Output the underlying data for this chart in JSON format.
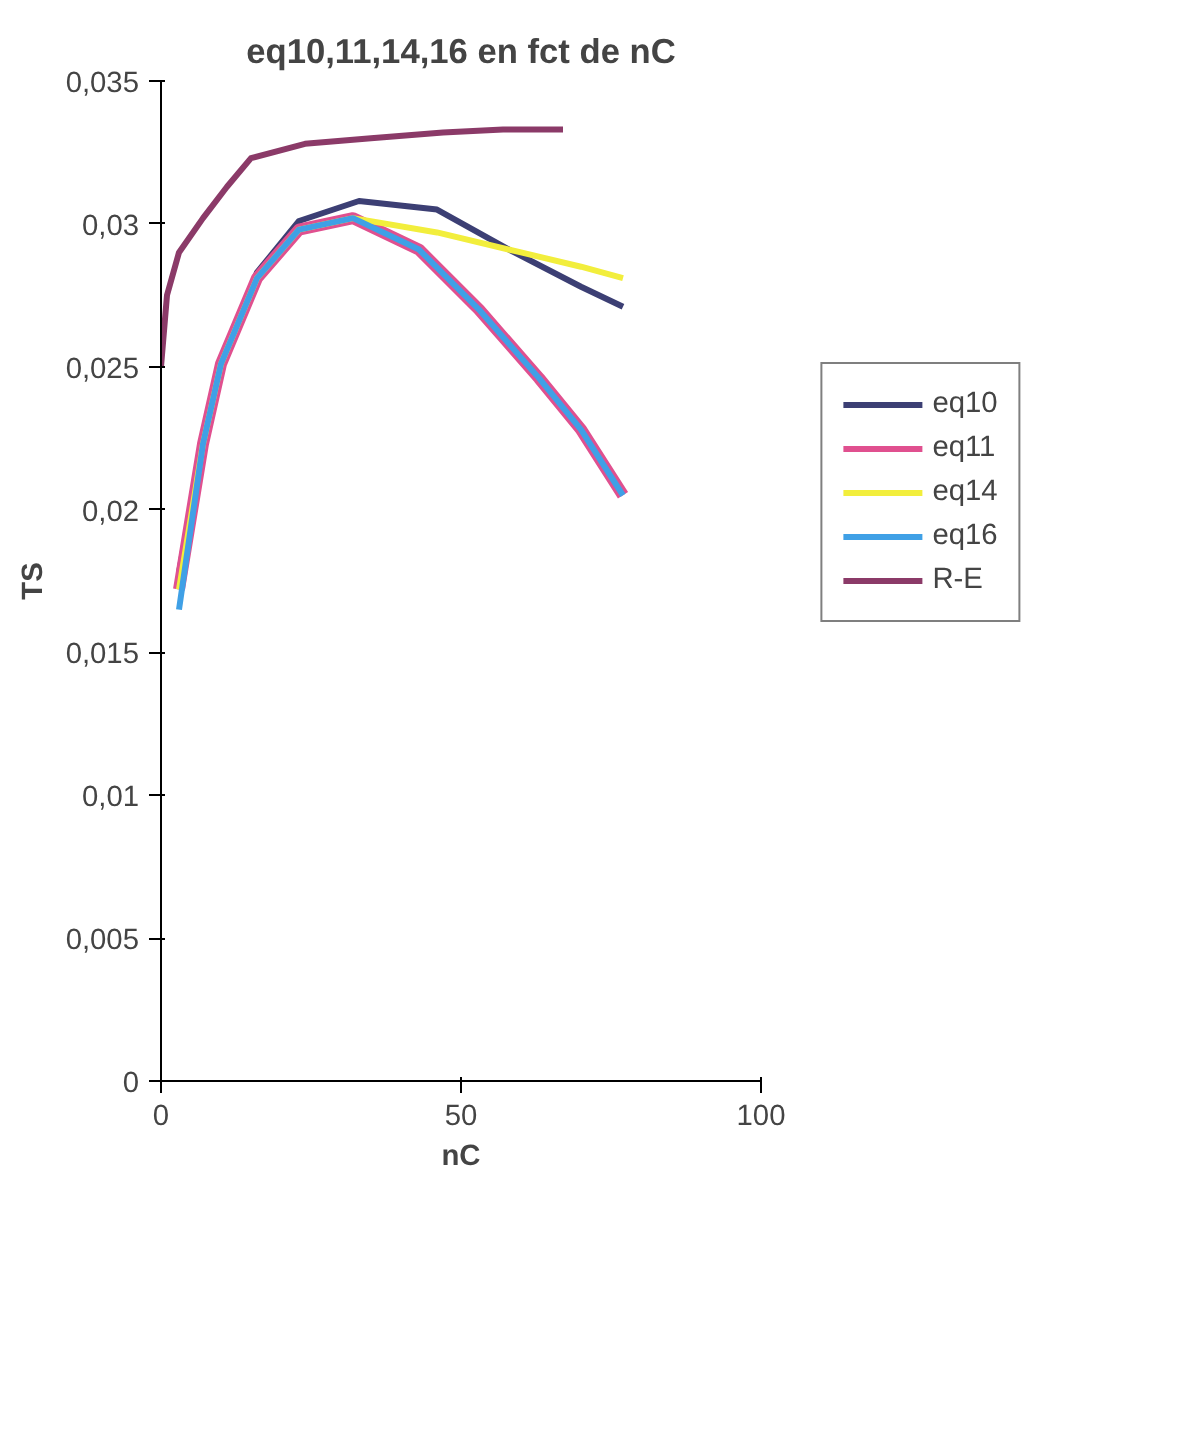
{
  "chart_data": {
    "type": "line",
    "title": "eq10,11,14,16 en fct de nC",
    "xlabel": "nC",
    "ylabel": "TS",
    "xlim": [
      0,
      100
    ],
    "xticks": [
      0,
      50,
      100
    ],
    "ylim": [
      0,
      0.035
    ],
    "yticks": [
      0,
      {
        "value": 0.005,
        "label": "0,005"
      },
      {
        "value": 0.01,
        "label": "0,01"
      },
      {
        "value": 0.015,
        "label": "0,015"
      },
      {
        "value": 0.02,
        "label": "0,02"
      },
      {
        "value": 0.025,
        "label": "0,025"
      },
      {
        "value": 0.03,
        "label": "0,03"
      },
      {
        "value": 0.035,
        "label": "0,035"
      }
    ],
    "grid": false,
    "legend": "right",
    "marker": "none",
    "line_style": "solid",
    "series": [
      {
        "name": "eq10",
        "color": "#3c3f74",
        "x": [
          3,
          7,
          10,
          16,
          23,
          33,
          46,
          58,
          70,
          77
        ],
        "values": [
          0.0178,
          0.0224,
          0.0252,
          0.0283,
          0.0301,
          0.0308,
          0.0305,
          0.0291,
          0.0278,
          0.0271
        ]
      },
      {
        "name": "eq11",
        "color": "#e0508f",
        "x": [
          3,
          7,
          10,
          16,
          23,
          32,
          43,
          53,
          63,
          70,
          77
        ],
        "values": [
          0.0172,
          0.0223,
          0.0251,
          0.0281,
          0.0298,
          0.0302,
          0.0291,
          0.027,
          0.0246,
          0.0228,
          0.0205
        ]
      },
      {
        "name": "eq14",
        "color": "#f2ee3c",
        "x": [
          3,
          7,
          10,
          16,
          23,
          32,
          46,
          60,
          70,
          77
        ],
        "values": [
          0.0172,
          0.0223,
          0.0251,
          0.0281,
          0.0298,
          0.0302,
          0.0297,
          0.029,
          0.0285,
          0.0281
        ]
      },
      {
        "name": "eq16",
        "color": "#3fa0e6",
        "x": [
          3,
          7,
          10,
          16,
          23,
          32,
          43,
          53,
          63,
          70,
          77
        ],
        "values": [
          0.0165,
          0.0223,
          0.0251,
          0.0281,
          0.0298,
          0.0302,
          0.0291,
          0.027,
          0.0246,
          0.0228,
          0.0205
        ]
      },
      {
        "name": "R-E",
        "color": "#8b3a68",
        "x": [
          0,
          1,
          3,
          7,
          11,
          15,
          24,
          35,
          47,
          57,
          67
        ],
        "values": [
          0.025,
          0.0275,
          0.029,
          0.0302,
          0.0313,
          0.0323,
          0.0328,
          0.033,
          0.0332,
          0.0333,
          0.0333
        ]
      }
    ]
  }
}
